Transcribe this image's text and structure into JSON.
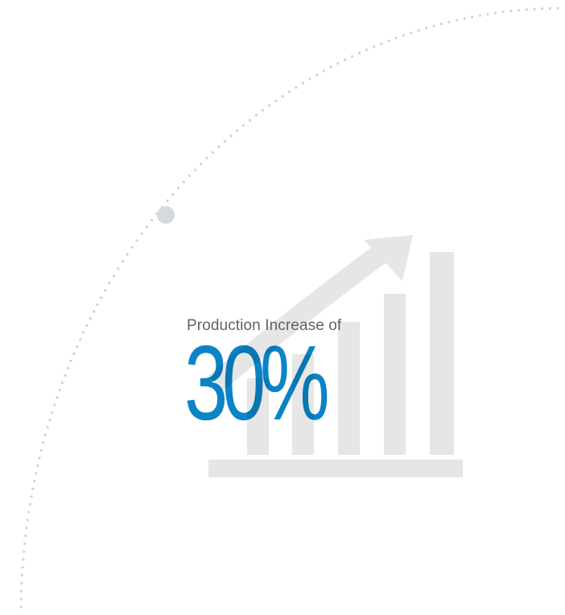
{
  "stat": {
    "label": "Production Increase of",
    "value": "30%",
    "value_color": "#0a84c6",
    "label_color": "#5e6368"
  },
  "graphic": {
    "icon": "growth-chart-icon",
    "icon_color": "#e6e6e6",
    "decoration": "dotted-arc",
    "dot_color": "#cfd2d6",
    "marker_color": "#d7dadd"
  }
}
